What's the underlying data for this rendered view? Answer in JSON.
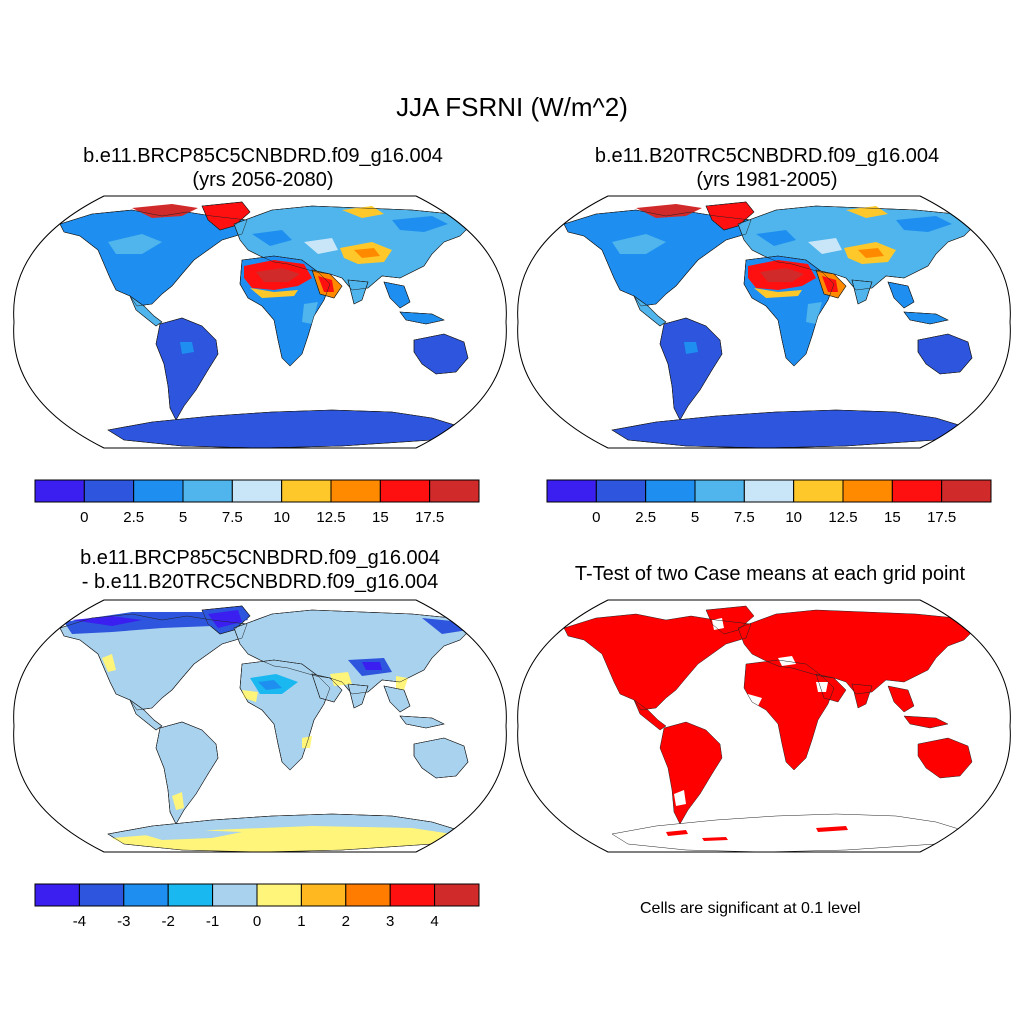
{
  "figure": {
    "title": "JJA FSRNI (W/m^2)"
  },
  "panels": [
    {
      "id": "case1",
      "title_line1": "b.e11.BRCP85C5CNBDRD.f09_g16.004",
      "title_line2": "(yrs 2056-2080)",
      "palette": "flux"
    },
    {
      "id": "case2",
      "title_line1": "b.e11.B20TRC5CNBDRD.f09_g16.004",
      "title_line2": "(yrs 1981-2005)",
      "palette": "flux"
    },
    {
      "id": "diff",
      "title_line1": "b.e11.BRCP85C5CNBDRD.f09_g16.004",
      "title_line2": "- b.e11.B20TRC5CNBDRD.f09_g16.004",
      "palette": "diff"
    },
    {
      "id": "ttest",
      "title_line1": "T-Test of two Case means at each grid point",
      "title_line2": "",
      "palette": "sig"
    }
  ],
  "colorbars": {
    "flux": {
      "colors": [
        "#3a1ff0",
        "#2d55dd",
        "#1e8ff0",
        "#4fb5ec",
        "#c8e6f7",
        "#ffc82a",
        "#ff8a00",
        "#ff1010",
        "#d12a2a"
      ],
      "labels": [
        "0",
        "2.5",
        "5",
        "7.5",
        "10",
        "12.5",
        "15",
        "17.5"
      ]
    },
    "diff": {
      "colors": [
        "#3a1ff0",
        "#2d55dd",
        "#1e8ff0",
        "#1ab8f0",
        "#a8d2ee",
        "#fff57a",
        "#ffb81f",
        "#ff7c00",
        "#ff1010",
        "#d12a2a"
      ],
      "labels": [
        "-4",
        "-3",
        "-2",
        "-1",
        "0",
        "1",
        "2",
        "3",
        "4"
      ]
    }
  },
  "significance_note": "Cells are significant at 0.1 level"
}
